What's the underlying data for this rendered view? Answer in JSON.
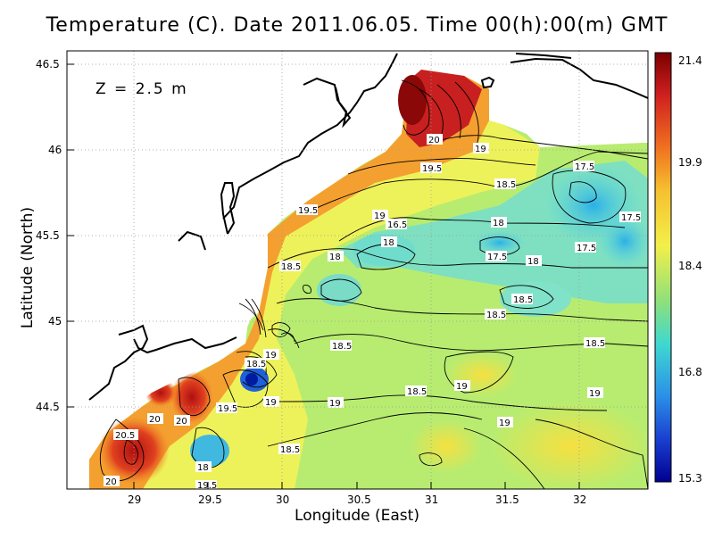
{
  "title": "Temperature (C). Date 2011.06.05. Time 00(h):00(m) GMT",
  "depth_label": "Z = 2.5 m",
  "x_axis": {
    "label": "Longitude (East)",
    "ticks": [
      "29",
      "29.5",
      "30",
      "30.5",
      "31",
      "31.5",
      "32"
    ]
  },
  "y_axis": {
    "label": "Latitude (North)",
    "ticks": [
      "46.5",
      "46",
      "45.5",
      "45",
      "44.5"
    ]
  },
  "colorbar": {
    "ticks": [
      "21.4",
      "19.9",
      "18.4",
      "16.8",
      "15.3"
    ],
    "min": 15.3,
    "max": 21.4
  },
  "contour_labels": [
    "20",
    "19",
    "19.5",
    "18.5",
    "17.5",
    "17.5",
    "17.5",
    "19.5",
    "19",
    "16.5",
    "18",
    "18",
    "17.5",
    "18",
    "18.5",
    "18",
    "18.5",
    "18.5",
    "18.5",
    "18.5",
    "18.5",
    "19",
    "18.5",
    "19",
    "19",
    "19",
    "19",
    "19",
    "20",
    "20",
    "19.5",
    "20.5",
    "18",
    "18.5",
    "19.5",
    "20"
  ],
  "colors": {
    "ocean_warm": "#c81e1e",
    "ocean_mid": "#f4e23a",
    "ocean_cool": "#4fc9e8",
    "land": "#ffffff"
  }
}
